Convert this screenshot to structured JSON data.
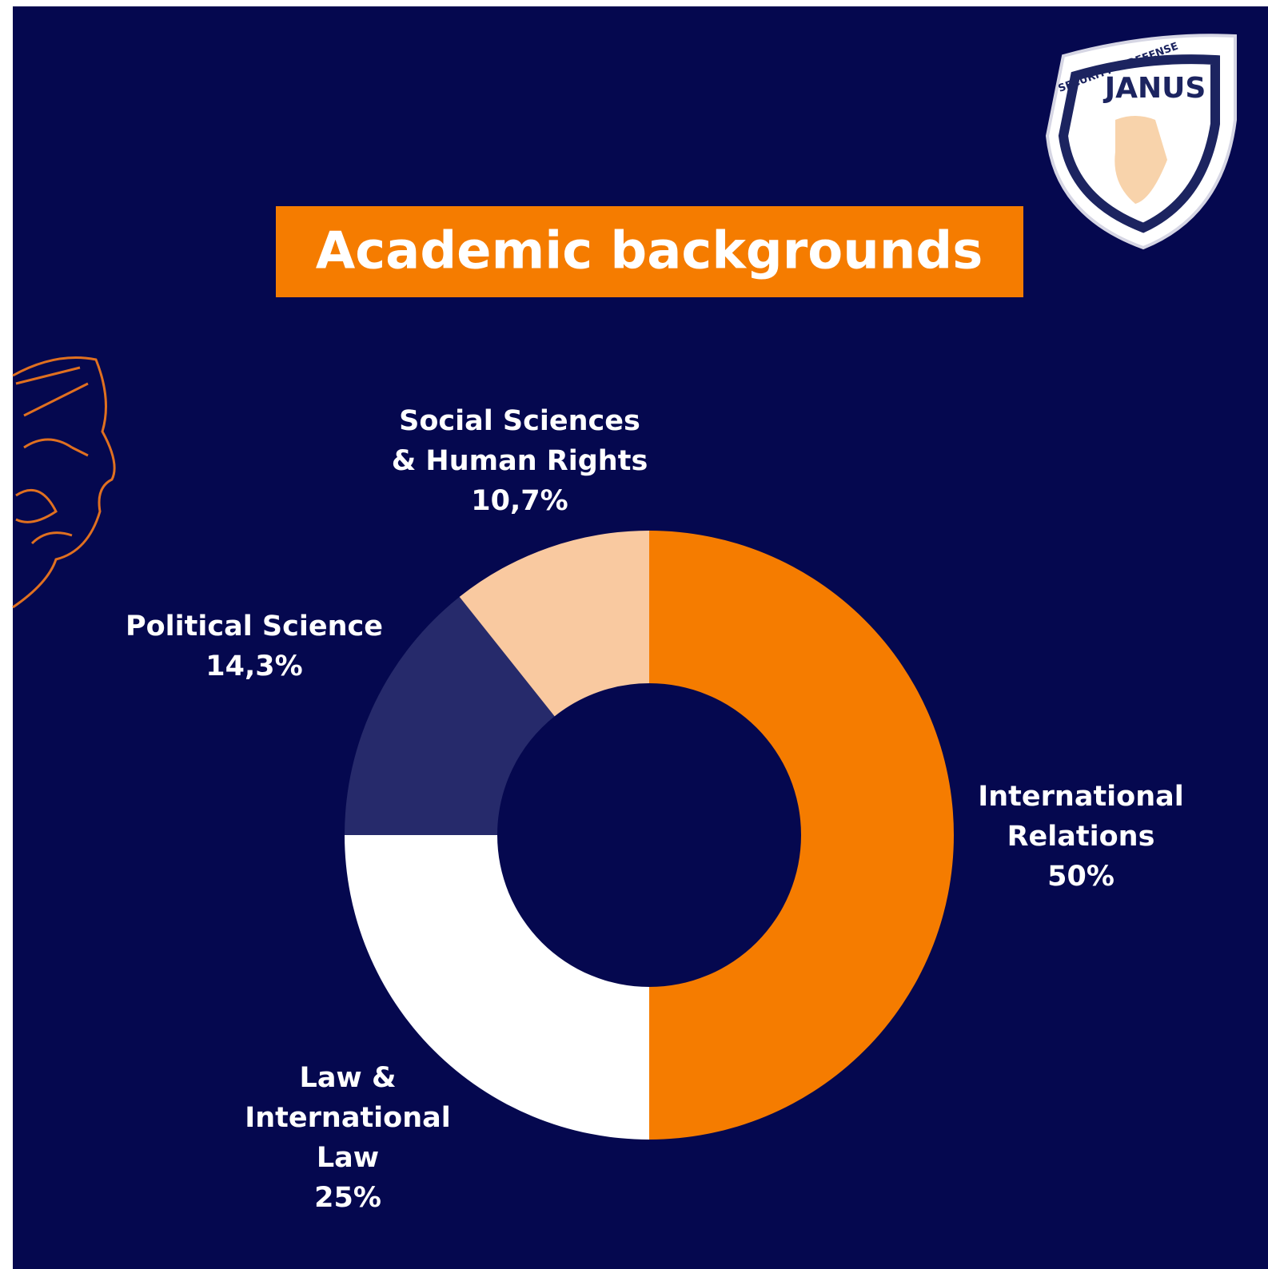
{
  "chart_data": {
    "type": "donut",
    "title": "Academic backgrounds",
    "categories": [
      [
        "International",
        "Relations"
      ],
      [
        "Law &",
        "International",
        "Law"
      ],
      [
        "Political Science"
      ],
      [
        "Social Sciences",
        "& Human Rights"
      ]
    ],
    "values": [
      50,
      25,
      14.3,
      10.7
    ],
    "value_labels": [
      "50%",
      "25%",
      "14,3%",
      "10,7%"
    ],
    "colors": [
      "#f57c00",
      "#ffffff",
      "#262a6b",
      "#f9c9a0"
    ]
  },
  "logo": {
    "name": "JANUS",
    "tagline": "SECURITY & DEFENSE"
  }
}
